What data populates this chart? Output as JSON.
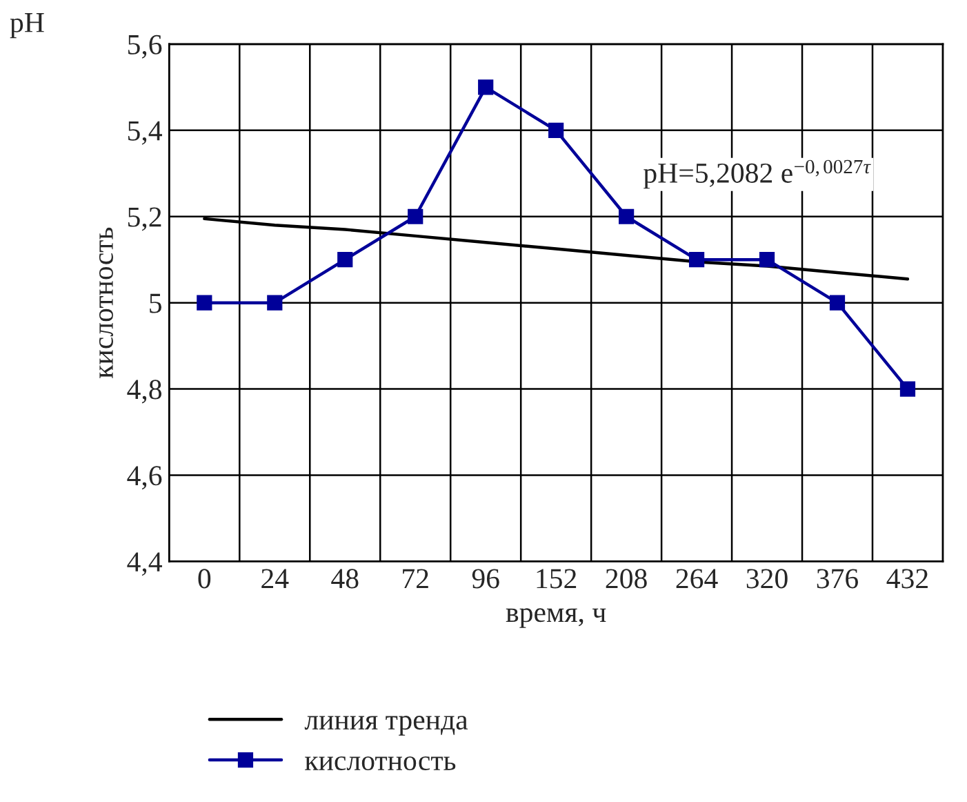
{
  "chart_data": {
    "type": "line",
    "xlabel": "время, ч",
    "ylabel": "кислотность",
    "categories": [
      "0",
      "24",
      "48",
      "72",
      "96",
      "152",
      "208",
      "264",
      "320",
      "376",
      "432"
    ],
    "series": [
      {
        "name": "линия тренда",
        "color": "#000000",
        "marker": "none",
        "values": [
          5.195,
          5.18,
          5.17,
          5.155,
          5.14,
          5.125,
          5.11,
          5.095,
          5.085,
          5.07,
          5.055
        ]
      },
      {
        "name": "кислотность",
        "color": "#000099",
        "marker": "square",
        "values": [
          5.0,
          5.0,
          5.1,
          5.2,
          5.5,
          5.4,
          5.2,
          5.1,
          5.1,
          5.0,
          4.8
        ]
      }
    ],
    "ylim": [
      4.4,
      5.6
    ],
    "yticks": [
      {
        "value": 4.4,
        "label": "4,4"
      },
      {
        "value": 4.6,
        "label": "4,6"
      },
      {
        "value": 4.8,
        "label": "4,8"
      },
      5,
      {
        "value": 5.2,
        "label": "5,2"
      },
      {
        "value": 5.4,
        "label": "5,4"
      },
      {
        "value": 5.6,
        "label": "5,6"
      }
    ],
    "annotations": [
      "pH",
      "pH=5,2082 e$^{−0,0027τ}$"
    ],
    "grid": true,
    "legend": "bottom",
    "line_style": "solid"
  }
}
